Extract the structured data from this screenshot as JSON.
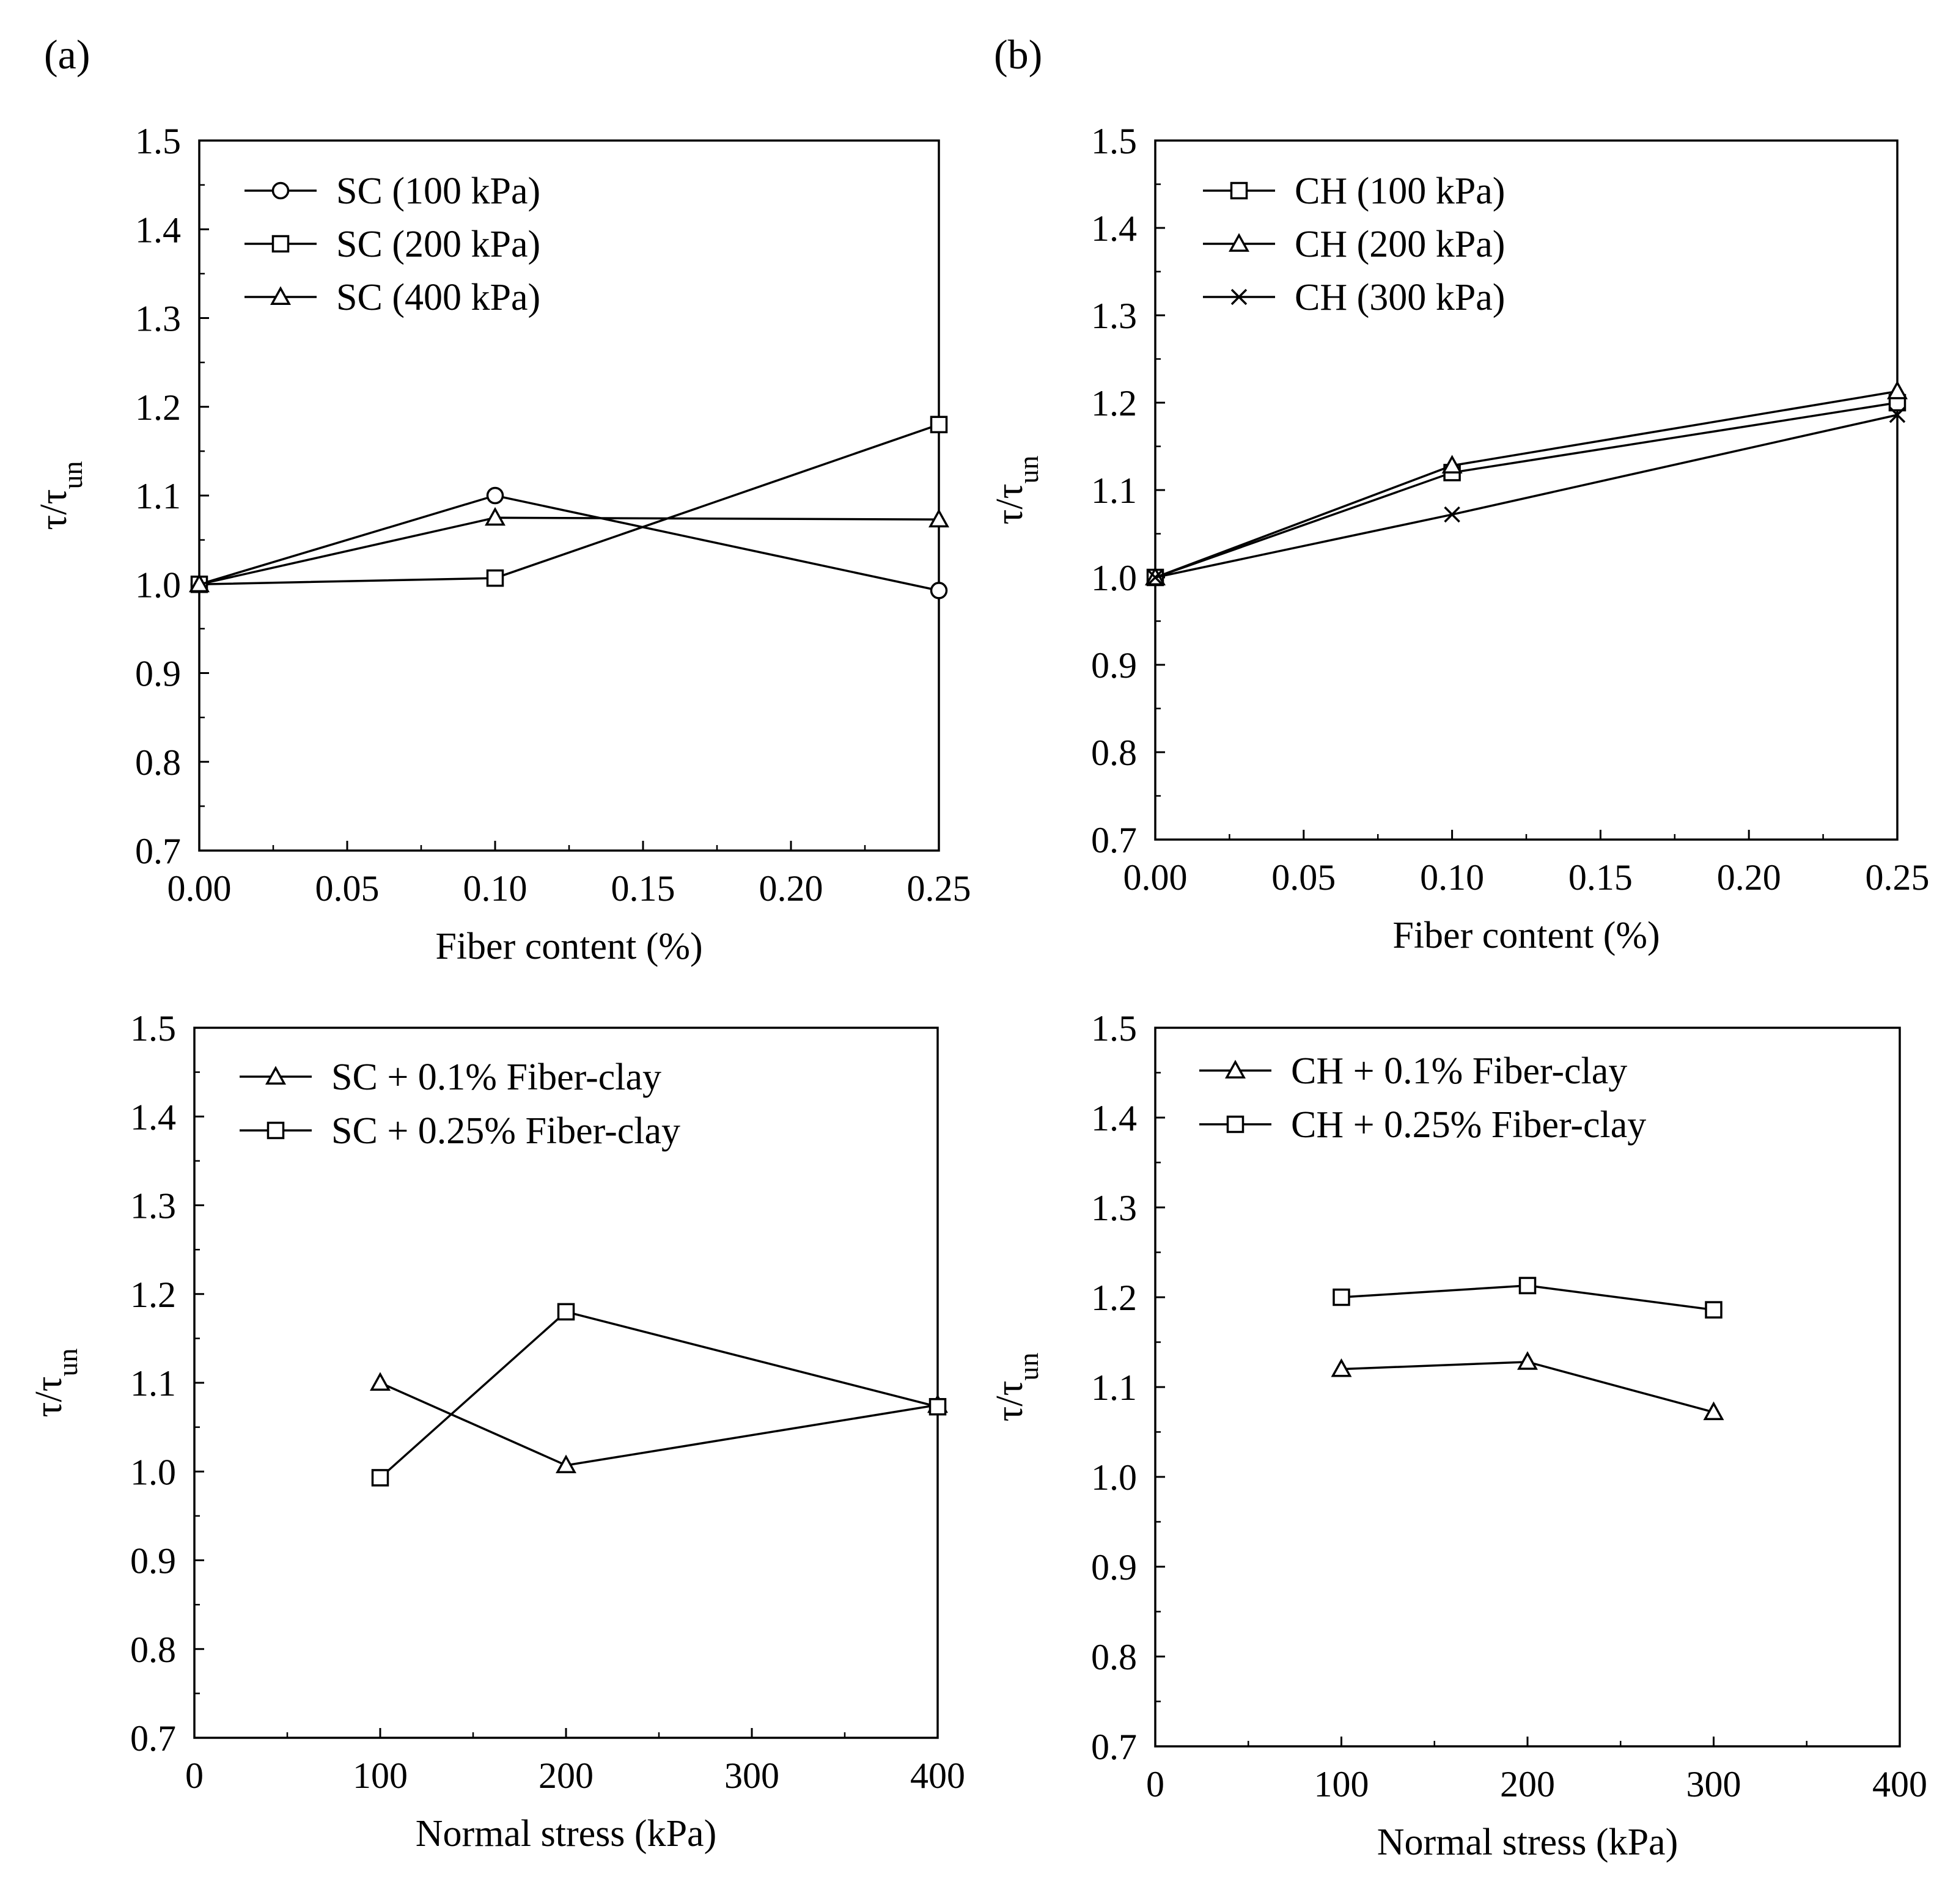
{
  "figure": {
    "panel_labels": [
      "(a)",
      "(b)"
    ]
  },
  "chart_data": [
    {
      "id": "a-top",
      "type": "line",
      "title": "",
      "xlabel": "Fiber content (%)",
      "ylabel": "τ/τun",
      "ylabel_main": "τ/τ",
      "ylabel_sub": "un",
      "xlim": [
        0,
        0.25
      ],
      "ylim": [
        0.7,
        1.5
      ],
      "xticks": [
        "0.00",
        "0.05",
        "0.10",
        "0.15",
        "0.20",
        "0.25"
      ],
      "yticks": [
        "0.7",
        "0.8",
        "0.9",
        "1.0",
        "1.1",
        "1.2",
        "1.3",
        "1.4",
        "1.5"
      ],
      "legend_position": "top-left",
      "series": [
        {
          "name": "SC (100 kPa)",
          "marker": "circle",
          "x": [
            0,
            0.1,
            0.25
          ],
          "y": [
            1.0,
            1.1,
            0.993
          ]
        },
        {
          "name": "SC (200 kPa)",
          "marker": "square",
          "x": [
            0,
            0.1,
            0.25
          ],
          "y": [
            1.0,
            1.007,
            1.18
          ]
        },
        {
          "name": "SC (400 kPa)",
          "marker": "triangle",
          "x": [
            0,
            0.1,
            0.25
          ],
          "y": [
            1.0,
            1.075,
            1.073
          ]
        }
      ]
    },
    {
      "id": "b-top",
      "type": "line",
      "title": "",
      "xlabel": "Fiber content (%)",
      "ylabel": "τ/τun",
      "ylabel_main": "τ/τ",
      "ylabel_sub": "un",
      "xlim": [
        0,
        0.25
      ],
      "ylim": [
        0.7,
        1.5
      ],
      "xticks": [
        "0.00",
        "0.05",
        "0.10",
        "0.15",
        "0.20",
        "0.25"
      ],
      "yticks": [
        "0.7",
        "0.8",
        "0.9",
        "1.0",
        "1.1",
        "1.2",
        "1.3",
        "1.4",
        "1.5"
      ],
      "legend_position": "top-left",
      "series": [
        {
          "name": "CH (100 kPa)",
          "marker": "square",
          "x": [
            0,
            0.1,
            0.25
          ],
          "y": [
            1.0,
            1.12,
            1.2
          ]
        },
        {
          "name": "CH (200 kPa)",
          "marker": "triangle",
          "x": [
            0,
            0.1,
            0.25
          ],
          "y": [
            1.0,
            1.128,
            1.213
          ]
        },
        {
          "name": "CH (300 kPa)",
          "marker": "cross",
          "x": [
            0,
            0.1,
            0.25
          ],
          "y": [
            1.0,
            1.072,
            1.186
          ]
        }
      ]
    },
    {
      "id": "a-bottom",
      "type": "line",
      "title": "",
      "xlabel": "Normal stress (kPa)",
      "ylabel": "τ/τun",
      "ylabel_main": "τ/τ",
      "ylabel_sub": "un",
      "xlim": [
        0,
        400
      ],
      "ylim": [
        0.7,
        1.5
      ],
      "xticks": [
        "0",
        "100",
        "200",
        "300",
        "400"
      ],
      "yticks": [
        "0.7",
        "0.8",
        "0.9",
        "1.0",
        "1.1",
        "1.2",
        "1.3",
        "1.4",
        "1.5"
      ],
      "legend_position": "top-left",
      "series": [
        {
          "name": "SC + 0.1% Fiber-clay",
          "marker": "triangle",
          "x": [
            100,
            200,
            400
          ],
          "y": [
            1.1,
            1.007,
            1.075
          ]
        },
        {
          "name": "SC + 0.25% Fiber-clay",
          "marker": "square",
          "x": [
            100,
            200,
            400
          ],
          "y": [
            0.993,
            1.18,
            1.073
          ]
        }
      ]
    },
    {
      "id": "b-bottom",
      "type": "line",
      "title": "",
      "xlabel": "Normal stress (kPa)",
      "ylabel": "τ/τun",
      "ylabel_main": "τ/τ",
      "ylabel_sub": "un",
      "xlim": [
        0,
        400
      ],
      "ylim": [
        0.7,
        1.5
      ],
      "xticks": [
        "0",
        "100",
        "200",
        "300",
        "400"
      ],
      "yticks": [
        "0.7",
        "0.8",
        "0.9",
        "1.0",
        "1.1",
        "1.2",
        "1.3",
        "1.4",
        "1.5"
      ],
      "legend_position": "top-left",
      "series": [
        {
          "name": "CH + 0.1% Fiber-clay",
          "marker": "triangle",
          "x": [
            100,
            200,
            300
          ],
          "y": [
            1.12,
            1.128,
            1.072
          ]
        },
        {
          "name": "CH + 0.25% Fiber-clay",
          "marker": "square",
          "x": [
            100,
            200,
            300
          ],
          "y": [
            1.2,
            1.213,
            1.186
          ]
        }
      ]
    }
  ]
}
